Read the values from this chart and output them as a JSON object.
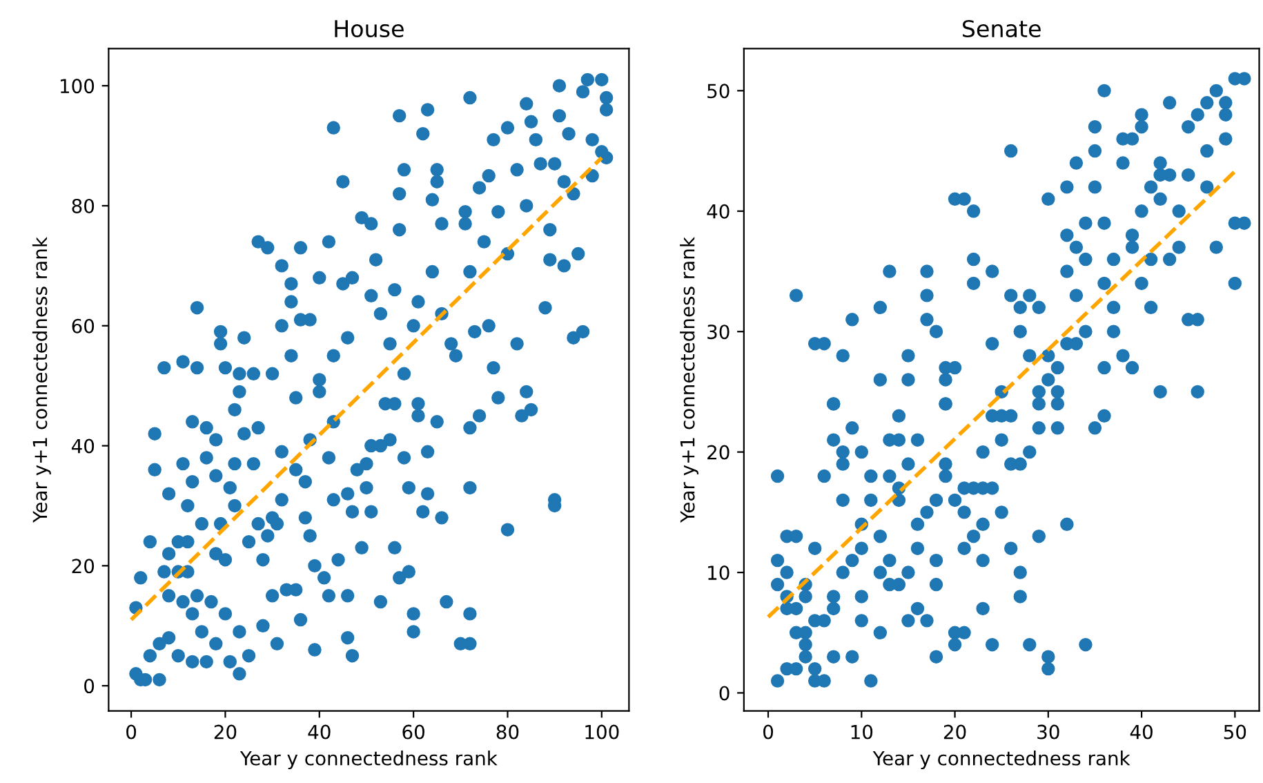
{
  "chart_data": [
    {
      "type": "scatter",
      "title": "House",
      "xlabel": "Year y connectedness rank",
      "ylabel": "Year y+1 connectedness rank",
      "xlim": [
        -4.8,
        105.8
      ],
      "ylim": [
        -4.2,
        106.2
      ],
      "xticks": [
        0,
        20,
        40,
        60,
        80,
        100
      ],
      "yticks": [
        0,
        20,
        40,
        60,
        80,
        100
      ],
      "grid": false,
      "legend": false,
      "series": [
        {
          "marker": "circle",
          "color": "#1f77b4",
          "x": [
            7,
            11,
            14,
            14,
            19,
            19,
            20,
            23,
            24,
            26,
            27,
            29,
            30,
            32,
            32,
            34,
            34,
            34,
            36,
            36,
            38,
            40,
            40,
            42,
            43,
            43,
            45,
            45,
            46,
            47,
            49,
            51,
            51,
            52,
            53,
            55,
            56,
            57,
            57,
            57,
            58,
            58,
            60,
            61,
            62,
            63,
            64,
            64,
            65,
            65,
            66,
            66,
            68,
            69,
            71,
            71,
            72,
            72,
            73,
            74,
            75,
            76,
            76,
            77,
            77,
            78,
            80,
            80,
            82,
            82,
            84,
            84,
            85,
            86,
            87,
            88,
            89,
            89,
            90,
            91,
            92,
            91,
            93,
            94,
            94,
            95,
            96,
            97,
            96,
            98,
            98,
            100,
            101,
            101,
            101,
            100,
            92,
            5,
            5,
            8,
            4,
            2,
            1,
            1,
            2,
            3,
            4,
            6,
            6,
            8,
            10,
            11,
            12,
            12,
            10,
            13,
            13,
            13,
            16,
            16,
            16,
            18,
            18,
            18,
            20,
            21,
            23,
            23,
            22,
            22,
            23,
            25,
            27,
            28,
            30,
            31,
            32,
            33,
            35,
            36,
            37,
            38,
            39,
            39,
            40,
            41,
            42,
            43,
            44,
            46,
            46,
            47,
            47,
            49,
            50,
            51,
            53,
            54,
            56,
            57,
            59,
            59,
            60,
            60,
            62,
            63,
            63,
            65,
            66,
            67,
            72,
            72,
            72,
            72,
            70,
            74,
            78,
            80,
            83,
            84,
            85,
            90,
            90,
            7,
            8,
            8,
            10,
            12,
            11,
            13,
            14,
            15,
            15,
            17,
            19,
            18,
            20,
            21,
            22,
            24,
            25,
            26,
            27,
            28,
            29,
            30,
            31,
            32,
            35,
            37,
            38,
            43,
            42,
            46,
            48,
            50,
            51,
            53,
            55,
            58,
            56,
            61,
            61,
            35
          ],
          "values": [
            53,
            54,
            63,
            53,
            59,
            57,
            53,
            52,
            58,
            52,
            74,
            73,
            52,
            70,
            60,
            67,
            64,
            55,
            73,
            61,
            61,
            68,
            51,
            74,
            93,
            55,
            84,
            67,
            58,
            68,
            78,
            77,
            65,
            71,
            62,
            57,
            66,
            95,
            82,
            76,
            86,
            52,
            60,
            64,
            92,
            96,
            69,
            81,
            86,
            84,
            77,
            62,
            57,
            55,
            79,
            77,
            69,
            98,
            59,
            83,
            74,
            60,
            85,
            91,
            53,
            79,
            93,
            72,
            86,
            57,
            97,
            80,
            94,
            91,
            87,
            63,
            76,
            71,
            87,
            100,
            84,
            95,
            92,
            82,
            58,
            72,
            59,
            101,
            99,
            91,
            85,
            101,
            98,
            96,
            88,
            89,
            70,
            42,
            36,
            32,
            24,
            18,
            13,
            2,
            1,
            1,
            5,
            7,
            1,
            8,
            5,
            37,
            30,
            24,
            24,
            44,
            34,
            4,
            43,
            38,
            4,
            41,
            35,
            7,
            12,
            4,
            49,
            2,
            46,
            37,
            9,
            5,
            43,
            10,
            15,
            7,
            31,
            16,
            16,
            11,
            28,
            25,
            20,
            6,
            49,
            18,
            15,
            31,
            21,
            15,
            8,
            5,
            29,
            23,
            33,
            29,
            14,
            47,
            23,
            18,
            33,
            19,
            12,
            9,
            29,
            32,
            39,
            44,
            28,
            14,
            43,
            33,
            7,
            12,
            7,
            45,
            48,
            26,
            45,
            49,
            46,
            31,
            30,
            19,
            22,
            15,
            19,
            19,
            14,
            12,
            15,
            27,
            9,
            14,
            27,
            22,
            21,
            33,
            30,
            42,
            24,
            37,
            27,
            21,
            25,
            28,
            27,
            39,
            36,
            34,
            41,
            44,
            38,
            32,
            36,
            37,
            40,
            40,
            41,
            38,
            47,
            47,
            45,
            48
          ]
        },
        {
          "type": "line",
          "marker": "none",
          "color": "#ffa500",
          "line_style": "dashed",
          "x": [
            0,
            100
          ],
          "values": [
            11,
            88
          ]
        }
      ]
    },
    {
      "type": "scatter",
      "title": "Senate",
      "xlabel": "Year y connectedness rank",
      "ylabel": "Year y+1 connectedness rank",
      "xlim": [
        -2.6,
        52.6
      ],
      "ylim": [
        -1.5,
        53.5
      ],
      "xticks": [
        0,
        10,
        20,
        30,
        40,
        50
      ],
      "yticks": [
        0,
        10,
        20,
        30,
        40,
        50
      ],
      "grid": false,
      "legend": false,
      "series": [
        {
          "marker": "circle",
          "color": "#1f77b4",
          "x": [
            3,
            5,
            6,
            7,
            8,
            9,
            12,
            13,
            12,
            15,
            15,
            17,
            17,
            17,
            18,
            19,
            19,
            19,
            20,
            20,
            21,
            22,
            22,
            22,
            24,
            24,
            25,
            26,
            26,
            27,
            28,
            27,
            29,
            28,
            29,
            30,
            30,
            30,
            31,
            31,
            32,
            32,
            32,
            32,
            33,
            33,
            33,
            33,
            34,
            34,
            34,
            35,
            35,
            35,
            36,
            36,
            36,
            36,
            37,
            37,
            37,
            38,
            38,
            38,
            39,
            39,
            39,
            39,
            40,
            40,
            40,
            40,
            41,
            41,
            41,
            42,
            42,
            42,
            42,
            43,
            43,
            43,
            44,
            44,
            45,
            45,
            45,
            46,
            46,
            46,
            47,
            47,
            47,
            48,
            48,
            49,
            49,
            49,
            50,
            50,
            51,
            50,
            51,
            1,
            1,
            1,
            1,
            2,
            3,
            2,
            2,
            2,
            3,
            2,
            3,
            3,
            4,
            4,
            4,
            4,
            4,
            5,
            5,
            5,
            5,
            6,
            6,
            6,
            7,
            7,
            7,
            7,
            7,
            8,
            8,
            8,
            8,
            9,
            9,
            9,
            10,
            10,
            10,
            10,
            10,
            11,
            11,
            11,
            12,
            12,
            12,
            13,
            13,
            13,
            13,
            14,
            14,
            14,
            14,
            14,
            15,
            15,
            15,
            16,
            16,
            16,
            16,
            17,
            17,
            18,
            18,
            18,
            18,
            19,
            19,
            19,
            20,
            20,
            20,
            21,
            21,
            21,
            21,
            22,
            22,
            23,
            23,
            23,
            23,
            23,
            24,
            24,
            24,
            25,
            25,
            25,
            26,
            26,
            26,
            27,
            27,
            27,
            28,
            28,
            29,
            29,
            29,
            30,
            30,
            31,
            31,
            32,
            34,
            35,
            36
          ],
          "values": [
            33,
            29,
            29,
            24,
            28,
            31,
            32,
            35,
            26,
            26,
            28,
            35,
            33,
            31,
            30,
            27,
            26,
            24,
            27,
            41,
            41,
            40,
            36,
            34,
            35,
            29,
            25,
            45,
            33,
            32,
            33,
            30,
            32,
            28,
            25,
            41,
            28,
            26,
            27,
            25,
            42,
            38,
            35,
            29,
            44,
            33,
            29,
            37,
            39,
            36,
            30,
            47,
            45,
            42,
            50,
            39,
            34,
            27,
            36,
            32,
            30,
            46,
            44,
            28,
            46,
            38,
            37,
            27,
            48,
            47,
            40,
            34,
            42,
            36,
            32,
            44,
            43,
            41,
            25,
            49,
            43,
            36,
            40,
            37,
            47,
            43,
            31,
            48,
            31,
            25,
            49,
            45,
            42,
            50,
            37,
            49,
            48,
            46,
            34,
            51,
            51,
            39,
            39,
            18,
            11,
            9,
            1,
            13,
            13,
            10,
            8,
            7,
            7,
            2,
            2,
            5,
            5,
            4,
            3,
            9,
            8,
            12,
            6,
            2,
            1,
            1,
            18,
            6,
            24,
            21,
            8,
            7,
            3,
            20,
            19,
            16,
            10,
            22,
            11,
            3,
            20,
            14,
            12,
            8,
            6,
            18,
            16,
            1,
            10,
            13,
            5,
            21,
            18,
            11,
            9,
            23,
            21,
            17,
            16,
            9,
            19,
            10,
            6,
            21,
            14,
            12,
            7,
            6,
            15,
            16,
            11,
            9,
            3,
            24,
            19,
            18,
            16,
            5,
            4,
            15,
            17,
            12,
            5,
            13,
            17,
            17,
            20,
            14,
            11,
            7,
            17,
            23,
            4,
            23,
            21,
            15,
            23,
            19,
            12,
            19,
            10,
            8,
            20,
            4,
            22,
            24,
            13,
            3,
            2,
            22,
            24,
            14,
            4,
            22,
            23
          ]
        },
        {
          "type": "line",
          "marker": "none",
          "color": "#ffa500",
          "line_style": "dashed",
          "x": [
            0,
            50
          ],
          "values": [
            6.3,
            43.3
          ]
        }
      ]
    }
  ]
}
